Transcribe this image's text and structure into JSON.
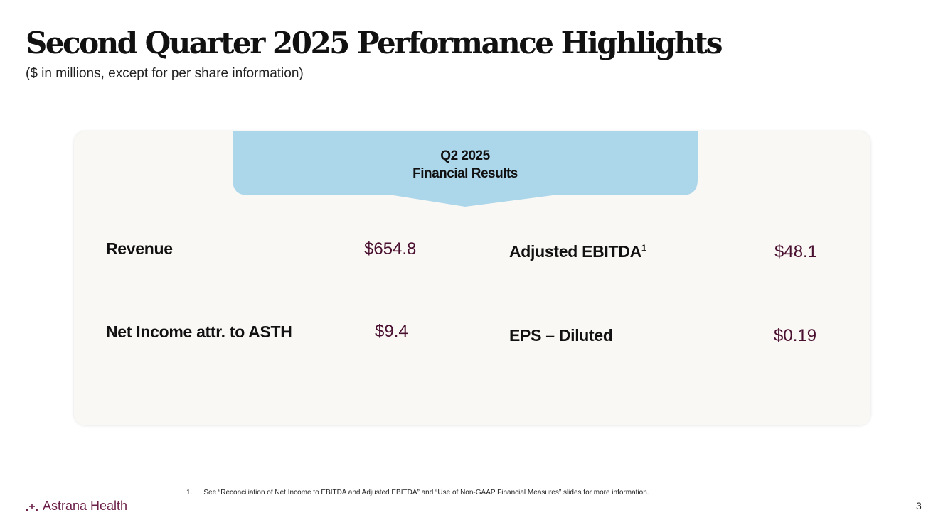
{
  "header": {
    "title": "Second Quarter 2025 Performance Highlights",
    "subtitle": "($ in millions, except for per share information)"
  },
  "banner": {
    "line1": "Q2 2025",
    "line2": "Financial Results",
    "color": "#acd6ea"
  },
  "metrics": [
    {
      "label": "Revenue",
      "value": "$654.8"
    },
    {
      "label": "Net Income attr. to ASTH",
      "value": "$9.4"
    },
    {
      "label": "Adjusted EBITDA",
      "sup": "1",
      "value": "$48.1"
    },
    {
      "label": "EPS – Diluted",
      "value": "$0.19"
    }
  ],
  "footnote": {
    "number": "1.",
    "text": "See “Reconciliation of Net Income to EBITDA and Adjusted EBITDA”  and  “Use of Non-GAAP Financial Measures” slides for more information."
  },
  "footer": {
    "logo": "Astrana Health",
    "page": "3"
  }
}
